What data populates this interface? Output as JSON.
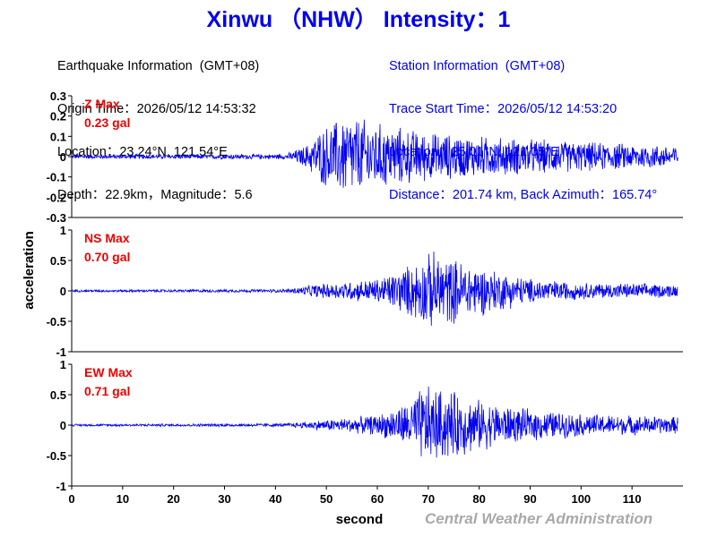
{
  "title": "Xinwu （NHW） Intensity：1",
  "earthquake_info": {
    "heading": "Earthquake Information  (GMT+08)",
    "origin_time": "Origin Time：2026/05/12 14:53:32",
    "location": "Location：23.24°N, 121.54°E",
    "depth_magnitude": "Depth：22.9km，Magnitude：5.6"
  },
  "station_info": {
    "heading": "Station Information  (GMT+08)",
    "trace_start": "Trace Start Time：2026/05/12 14:53:20",
    "location": "Location：25.01°N, 121.05°E",
    "distance": "Distance：201.74 km, Back Azimuth：165.74°"
  },
  "footer": "Central Weather Administration",
  "colors": {
    "title": "#0000ee",
    "trace": "#0000ee",
    "max_label": "#ee0000",
    "footer": "#a9a9a9",
    "axes": "#000000"
  },
  "chart_data": {
    "type": "line",
    "xlabel": "second",
    "ylabel": "acceleration",
    "xlim": [
      0,
      120
    ],
    "x_ticks": [
      0,
      10,
      20,
      30,
      40,
      50,
      60,
      70,
      80,
      90,
      100,
      110
    ],
    "grid": false,
    "panels": [
      {
        "name": "Z",
        "max_label": "Z Max",
        "max_value": "0.23 gal",
        "ylim": [
          -0.3,
          0.3
        ],
        "y_ticks": [
          0.3,
          0.2,
          0.1,
          0,
          -0.1,
          -0.2,
          -0.3
        ],
        "y_tick_labels": [
          "0.3",
          "0.2",
          "0.1",
          "0",
          "-0.1",
          "-0.2",
          "-0.3"
        ],
        "envelope": [
          [
            0,
            0.012
          ],
          [
            42,
            0.014
          ],
          [
            46,
            0.06
          ],
          [
            49,
            0.15
          ],
          [
            54,
            0.23
          ],
          [
            60,
            0.18
          ],
          [
            70,
            0.13
          ],
          [
            80,
            0.11
          ],
          [
            100,
            0.08
          ],
          [
            119,
            0.06
          ]
        ]
      },
      {
        "name": "NS",
        "max_label": "NS Max",
        "max_value": "0.70 gal",
        "ylim": [
          -1,
          1
        ],
        "y_ticks": [
          1,
          0.5,
          0,
          -0.5,
          -1
        ],
        "y_tick_labels": [
          "1",
          "0.5",
          "0",
          "-0.5",
          "-1"
        ],
        "envelope": [
          [
            0,
            0.02
          ],
          [
            42,
            0.03
          ],
          [
            48,
            0.12
          ],
          [
            60,
            0.22
          ],
          [
            66,
            0.45
          ],
          [
            71,
            0.7
          ],
          [
            76,
            0.55
          ],
          [
            82,
            0.4
          ],
          [
            90,
            0.22
          ],
          [
            100,
            0.15
          ],
          [
            119,
            0.12
          ]
        ]
      },
      {
        "name": "EW",
        "max_label": "EW Max",
        "max_value": "0.71 gal",
        "ylim": [
          -1,
          1
        ],
        "y_ticks": [
          1,
          0.5,
          0,
          -0.5,
          -1
        ],
        "y_tick_labels": [
          "1",
          "0.5",
          "0",
          "-0.5",
          "-1"
        ],
        "envelope": [
          [
            0,
            0.02
          ],
          [
            42,
            0.03
          ],
          [
            48,
            0.08
          ],
          [
            60,
            0.18
          ],
          [
            66,
            0.4
          ],
          [
            69,
            0.71
          ],
          [
            75,
            0.6
          ],
          [
            80,
            0.45
          ],
          [
            88,
            0.3
          ],
          [
            100,
            0.2
          ],
          [
            119,
            0.15
          ]
        ]
      }
    ]
  }
}
